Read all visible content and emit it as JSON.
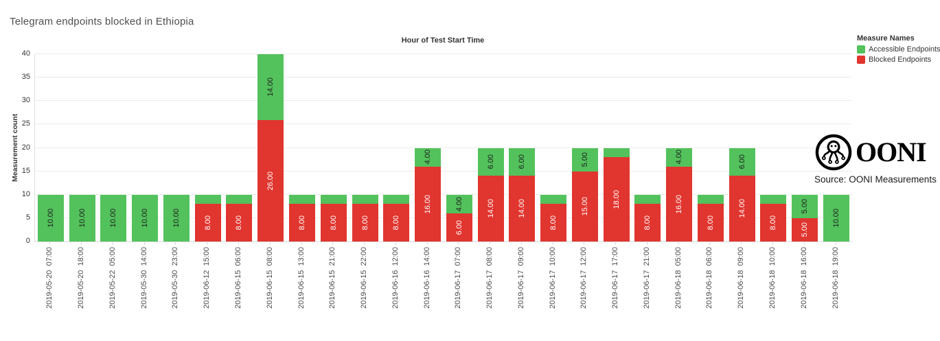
{
  "title": "Telegram endpoints blocked in Ethiopia",
  "legend": {
    "title": "Measure Names",
    "items": [
      {
        "label": "Accessible Endpoints",
        "color": "#53c25c"
      },
      {
        "label": "Blocked Endpoints",
        "color": "#e1352f"
      }
    ]
  },
  "branding": {
    "wordmark": "OONI",
    "source": "Source: OONI Measurements"
  },
  "chart_data": {
    "type": "bar",
    "stacked": true,
    "title": "Hour of Test Start Time",
    "xlabel": "",
    "ylabel": "Measurement count",
    "ylim": [
      0,
      40
    ],
    "yticks": [
      0,
      5,
      10,
      15,
      20,
      25,
      30,
      35,
      40
    ],
    "grid": true,
    "legend_position": "top-right",
    "label_format": "2-decimals",
    "label_min_value": 4,
    "categories": [
      "2019-05-20  07:00",
      "2019-05-20  18:00",
      "2019-05-22  05:00",
      "2019-05-30  14:00",
      "2019-05-30  23:00",
      "2019-06-12  15:00",
      "2019-06-15  06:00",
      "2019-06-15  08:00",
      "2019-06-15  13:00",
      "2019-06-15  21:00",
      "2019-06-15  22:00",
      "2019-06-16  12:00",
      "2019-06-16  14:00",
      "2019-06-17  07:00",
      "2019-06-17  08:00",
      "2019-06-17  09:00",
      "2019-06-17  10:00",
      "2019-06-17  12:00",
      "2019-06-17  17:00",
      "2019-06-17  21:00",
      "2019-06-18  05:00",
      "2019-06-18  06:00",
      "2019-06-18  09:00",
      "2019-06-18  10:00",
      "2019-06-18  16:00",
      "2019-06-18  19:00"
    ],
    "series": [
      {
        "name": "Blocked Endpoints",
        "color": "#e1352f",
        "text_color": "#ffffff",
        "values": [
          0,
          0,
          0,
          0,
          0,
          8,
          8,
          26,
          8,
          8,
          8,
          8,
          16,
          6,
          14,
          14,
          8,
          15,
          18,
          8,
          16,
          8,
          14,
          8,
          5,
          0
        ]
      },
      {
        "name": "Accessible Endpoints",
        "color": "#53c25c",
        "text_color": "#1c1c1c",
        "values": [
          10,
          10,
          10,
          10,
          10,
          2,
          2,
          14,
          2,
          2,
          2,
          2,
          4,
          4,
          6,
          6,
          2,
          5,
          2,
          2,
          4,
          2,
          6,
          2,
          5,
          10
        ]
      }
    ]
  }
}
